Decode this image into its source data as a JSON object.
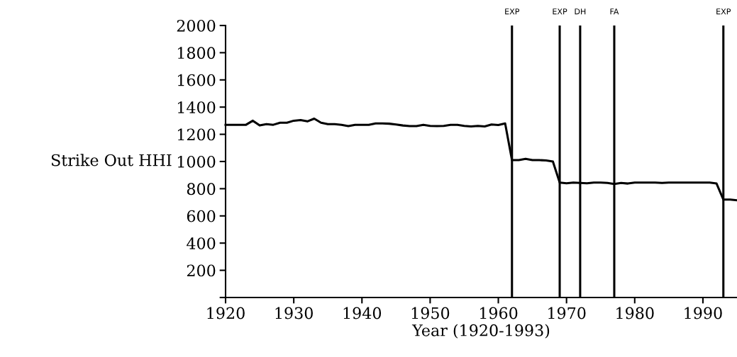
{
  "chart_data": {
    "type": "line",
    "xlabel": "Year (1920-1993)",
    "ylabel": "Strike Out HHI",
    "x": [
      1920,
      1921,
      1922,
      1923,
      1924,
      1925,
      1926,
      1927,
      1928,
      1929,
      1930,
      1931,
      1932,
      1933,
      1934,
      1935,
      1936,
      1937,
      1938,
      1939,
      1940,
      1941,
      1942,
      1943,
      1944,
      1945,
      1946,
      1947,
      1948,
      1949,
      1950,
      1951,
      1952,
      1953,
      1954,
      1955,
      1956,
      1957,
      1958,
      1959,
      1960,
      1961,
      1962,
      1963,
      1964,
      1965,
      1966,
      1967,
      1968,
      1969,
      1970,
      1971,
      1972,
      1973,
      1974,
      1975,
      1976,
      1977,
      1978,
      1979,
      1980,
      1981,
      1982,
      1983,
      1984,
      1985,
      1986,
      1987,
      1988,
      1989,
      1990,
      1991,
      1992,
      1993,
      1994,
      1995
    ],
    "series": [
      {
        "color": "#000000",
        "values": [
          1270,
          1270,
          1270,
          1270,
          1300,
          1265,
          1275,
          1270,
          1285,
          1285,
          1300,
          1305,
          1295,
          1315,
          1285,
          1275,
          1275,
          1270,
          1260,
          1270,
          1270,
          1270,
          1280,
          1280,
          1278,
          1272,
          1265,
          1260,
          1260,
          1270,
          1262,
          1260,
          1262,
          1270,
          1270,
          1262,
          1258,
          1262,
          1258,
          1272,
          1268,
          1280,
          1010,
          1010,
          1020,
          1010,
          1010,
          1008,
          1000,
          845,
          840,
          845,
          842,
          840,
          845,
          845,
          842,
          835,
          842,
          838,
          845,
          845,
          845,
          845,
          842,
          845,
          845,
          845,
          845,
          845,
          845,
          845,
          838,
          720,
          720,
          715
        ]
      }
    ],
    "xlim": [
      1920,
      1995
    ],
    "ylim": [
      0,
      2000
    ],
    "xticks": [
      1920,
      1930,
      1940,
      1950,
      1960,
      1970,
      1980,
      1990
    ],
    "yticks": [
      {
        "value": 0,
        "label": null
      },
      200,
      400,
      600,
      800,
      1000,
      1200,
      1400,
      1600,
      1800,
      2000
    ],
    "ref_lines": [
      {
        "axis": "x",
        "value": 1962,
        "label": "EXP",
        "color": "#000000"
      },
      {
        "axis": "x",
        "value": 1969,
        "label": "EXP",
        "color": "#000000"
      },
      {
        "axis": "x",
        "value": 1972,
        "label": "DH",
        "color": "#000000"
      },
      {
        "axis": "x",
        "value": 1977,
        "label": "FA",
        "color": "#000000"
      },
      {
        "axis": "x",
        "value": 1993,
        "label": "EXP",
        "color": "#000000"
      }
    ],
    "grid": false,
    "legend": false,
    "marker": "none",
    "line_style": "solid"
  }
}
